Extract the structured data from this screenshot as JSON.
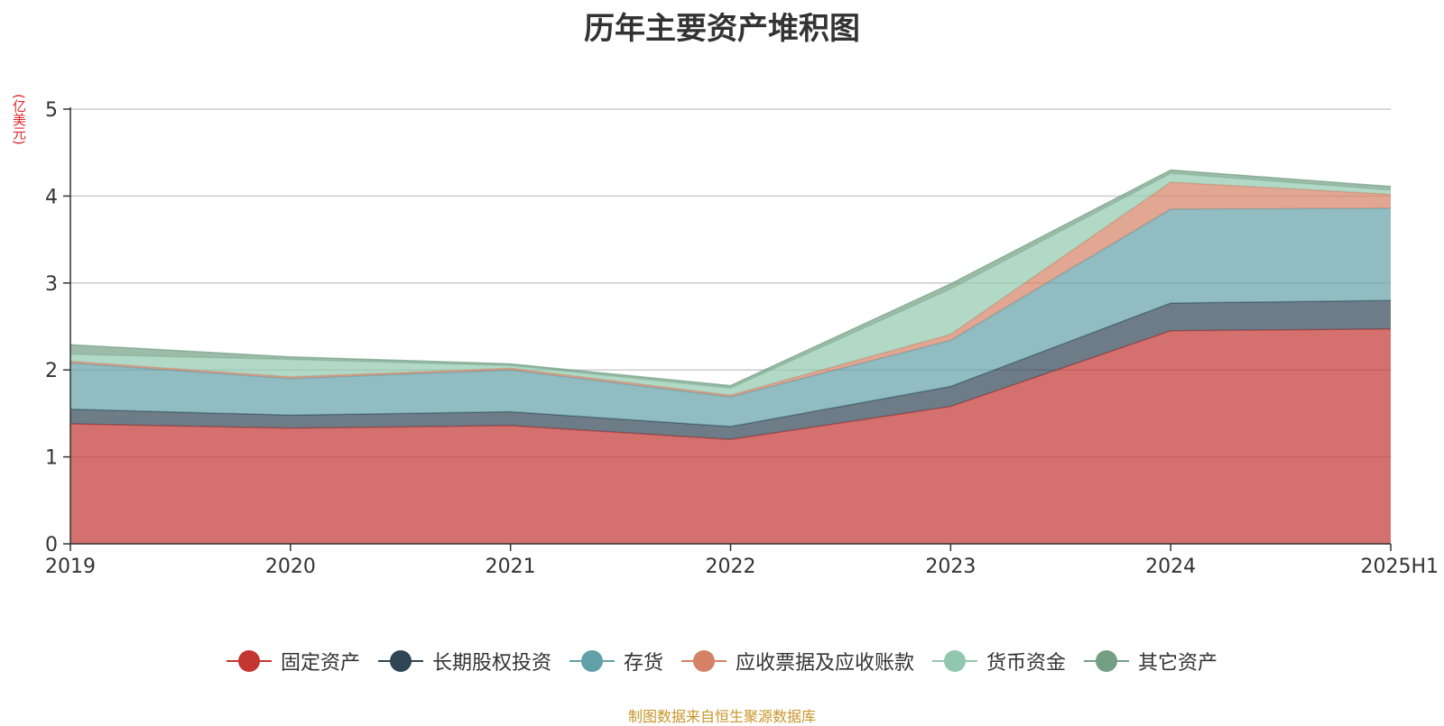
{
  "chart_data": {
    "type": "area",
    "title": "历年主要资产堆积图",
    "unit_label": "(亿美元)",
    "source_note": "制图数据来自恒生聚源数据库",
    "x": [
      "2019",
      "2020",
      "2021",
      "2022",
      "2023",
      "2024",
      "2025H1"
    ],
    "ylim": [
      0,
      5
    ],
    "yticks": [
      "0",
      "1",
      "2",
      "3",
      "4",
      "5"
    ],
    "stacked": true,
    "grid": true,
    "legend_position": "bottom",
    "series": [
      {
        "name": "固定资产",
        "color": "#c23531",
        "values": [
          1.38,
          1.33,
          1.36,
          1.2,
          1.58,
          2.45,
          2.47
        ]
      },
      {
        "name": "长期股权投资",
        "color": "#2f4554",
        "values": [
          0.17,
          0.15,
          0.16,
          0.15,
          0.23,
          0.32,
          0.33
        ]
      },
      {
        "name": "存货",
        "color": "#61a0a8",
        "values": [
          0.53,
          0.42,
          0.48,
          0.34,
          0.53,
          1.08,
          1.06
        ]
      },
      {
        "name": "应收票据及应收账款",
        "color": "#d48265",
        "values": [
          0.02,
          0.02,
          0.02,
          0.02,
          0.07,
          0.31,
          0.16
        ]
      },
      {
        "name": "货币资金",
        "color": "#91c7ae",
        "values": [
          0.08,
          0.2,
          0.03,
          0.08,
          0.52,
          0.1,
          0.05
        ]
      },
      {
        "name": "其它资产",
        "color": "#749f83",
        "values": [
          0.11,
          0.03,
          0.02,
          0.03,
          0.06,
          0.04,
          0.04
        ]
      }
    ]
  }
}
